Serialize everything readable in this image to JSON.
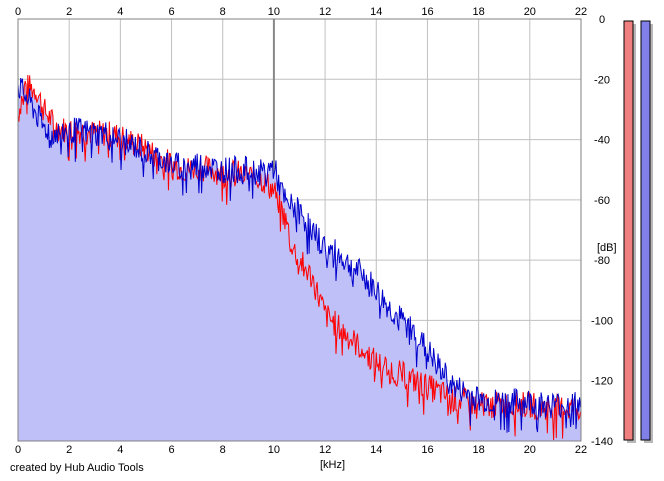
{
  "chart_data": {
    "type": "area",
    "xlabel": "[kHz]",
    "ylabel": "[dB]",
    "xlim": [
      0,
      22
    ],
    "ylim": [
      -140,
      0
    ],
    "x_ticks": [
      "0",
      "2",
      "4",
      "6",
      "8",
      "10",
      "12",
      "14",
      "16",
      "18",
      "20",
      "22"
    ],
    "y_ticks": [
      "0",
      "-20",
      "-40",
      "-60",
      "-80",
      "-100",
      "-120",
      "-140"
    ],
    "grid": true,
    "colors": {
      "fill": "#c0c0f8",
      "red_series": "#ff0000",
      "blue_series": "#0000cc",
      "grid": "#c0c0c0",
      "meter_left": "#f08080",
      "meter_right": "#8080e8"
    },
    "series": [
      {
        "color": "red",
        "x": [
          0,
          0.25,
          0.5,
          0.75,
          1,
          1.5,
          2,
          2.5,
          3,
          3.5,
          4,
          4.5,
          5,
          5.5,
          6,
          6.5,
          7,
          7.5,
          8,
          8.5,
          9,
          9.5,
          10,
          10.25,
          10.5,
          10.75,
          11,
          11.5,
          12,
          12.5,
          13,
          13.5,
          14,
          14.5,
          15,
          15.5,
          16,
          16.5,
          17,
          17.5,
          18,
          18.5,
          19,
          19.5,
          20,
          20.5,
          21,
          21.5,
          22
        ],
        "y": [
          -32,
          -22,
          -23,
          -24,
          -30,
          -36,
          -37,
          -37,
          -38,
          -38,
          -39,
          -41,
          -43,
          -46,
          -48,
          -50,
          -49,
          -50,
          -51,
          -51,
          -52,
          -53,
          -57,
          -62,
          -68,
          -76,
          -80,
          -86,
          -98,
          -102,
          -106,
          -110,
          -114,
          -116,
          -118,
          -120,
          -122,
          -124,
          -126,
          -127,
          -128,
          -128,
          -128,
          -128,
          -128,
          -129,
          -129,
          -129,
          -129
        ]
      },
      {
        "color": "blue",
        "x": [
          0,
          0.25,
          0.5,
          0.75,
          1,
          1.5,
          2,
          2.5,
          3,
          3.5,
          4,
          4.5,
          5,
          5.5,
          6,
          6.5,
          7,
          7.5,
          8,
          8.5,
          9,
          9.5,
          10,
          10.25,
          10.5,
          10.75,
          11,
          11.5,
          12,
          12.5,
          13,
          13.5,
          14,
          14.5,
          15,
          15.5,
          16,
          16.5,
          17,
          17.5,
          18,
          18.5,
          19,
          19.5,
          20,
          20.5,
          21,
          21.5,
          22
        ],
        "y": [
          -22,
          -25,
          -28,
          -32,
          -36,
          -38,
          -37,
          -37,
          -38,
          -38,
          -40,
          -42,
          -44,
          -46,
          -48,
          -49,
          -48,
          -49,
          -50,
          -50,
          -50,
          -51,
          -49,
          -56,
          -62,
          -62,
          -64,
          -70,
          -76,
          -78,
          -82,
          -85,
          -90,
          -96,
          -100,
          -104,
          -110,
          -116,
          -122,
          -124,
          -126,
          -127,
          -127,
          -127,
          -127,
          -128,
          -128,
          -128,
          -128
        ]
      }
    ],
    "meters": [
      {
        "color": "red",
        "level": 1.0
      },
      {
        "color": "blue",
        "level": 1.0
      }
    ]
  },
  "footer": {
    "credit": "created by Hub Audio Tools"
  }
}
